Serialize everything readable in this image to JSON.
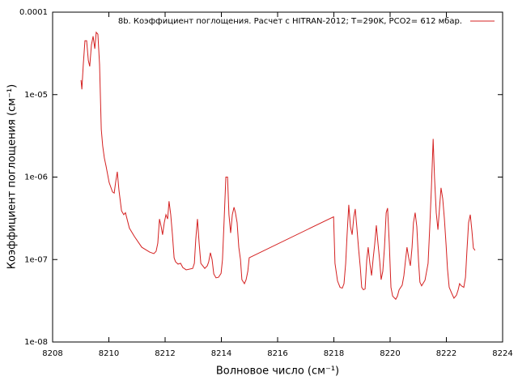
{
  "chart_data": {
    "type": "line",
    "xlabel": "Волновое число (см⁻¹)",
    "ylabel": "Коэффициент поглощения (см⁻¹)",
    "xlim": [
      8208,
      8224
    ],
    "xticks": [
      8208,
      8210,
      8212,
      8214,
      8216,
      8218,
      8220,
      8222,
      8224
    ],
    "ylim": [
      1e-08,
      0.0001
    ],
    "ylog": true,
    "yticks": [
      {
        "value": 1e-08,
        "label": "1e-08"
      },
      {
        "value": 1e-07,
        "label": "1e-07"
      },
      {
        "value": 1e-06,
        "label": "1e-06"
      },
      {
        "value": 1e-05,
        "label": "1e-05"
      },
      0.0001
    ],
    "legend": "upper-right",
    "x": [
      8209.01,
      8209.04,
      8209.09,
      8209.15,
      8209.21,
      8209.27,
      8209.32,
      8209.38,
      8209.44,
      8209.5,
      8209.55,
      8209.61,
      8209.67,
      8209.73,
      8209.78,
      8209.84,
      8209.9,
      8210.01,
      8210.13,
      8210.19,
      8210.24,
      8210.3,
      8210.36,
      8210.45,
      8210.53,
      8210.59,
      8210.73,
      8210.91,
      8211.17,
      8211.45,
      8211.6,
      8211.68,
      8211.74,
      8211.8,
      8211.86,
      8211.91,
      8211.97,
      8212.03,
      8212.09,
      8212.14,
      8212.2,
      8212.26,
      8212.32,
      8212.37,
      8212.46,
      8212.55,
      8212.63,
      8212.75,
      8212.98,
      8213.04,
      8213.09,
      8213.15,
      8213.21,
      8213.27,
      8213.41,
      8213.5,
      8213.55,
      8213.61,
      8213.67,
      8213.73,
      8213.81,
      8213.9,
      8213.99,
      8214.04,
      8214.1,
      8214.16,
      8214.22,
      8214.27,
      8214.33,
      8214.39,
      8214.45,
      8214.5,
      8214.56,
      8214.62,
      8214.68,
      8214.73,
      8214.82,
      8214.88,
      8214.94,
      8214.99,
      8217.99,
      8218.04,
      8218.13,
      8218.22,
      8218.3,
      8218.36,
      8218.42,
      8218.47,
      8218.53,
      8218.59,
      8218.65,
      8218.71,
      8218.76,
      8218.82,
      8218.88,
      8218.94,
      8218.99,
      8219.05,
      8219.11,
      8219.17,
      8219.22,
      8219.28,
      8219.34,
      8219.4,
      8219.45,
      8219.51,
      8219.57,
      8219.63,
      8219.68,
      8219.74,
      8219.8,
      8219.86,
      8219.91,
      8219.97,
      8220.03,
      8220.09,
      8220.2,
      8220.26,
      8220.32,
      8220.43,
      8220.49,
      8220.55,
      8220.6,
      8220.66,
      8220.72,
      8220.78,
      8220.83,
      8220.89,
      8220.95,
      8221.01,
      8221.06,
      8221.12,
      8221.24,
      8221.35,
      8221.41,
      8221.47,
      8221.53,
      8221.58,
      8221.64,
      8221.7,
      8221.76,
      8221.81,
      8221.87,
      8221.93,
      8221.99,
      8222.04,
      8222.1,
      8222.19,
      8222.27,
      8222.36,
      8222.42,
      8222.47,
      8222.53,
      8222.62,
      8222.68,
      8222.73,
      8222.79,
      8222.85,
      8222.91,
      8222.96,
      8223.02
    ],
    "series": [
      {
        "name": "8b. Коэффициент поглощения. Расчет с HITRAN-2012; T=290K, PCO2= 612 мбар.",
        "color": "#d42020",
        "values": [
          1.5e-05,
          1.16e-05,
          2.3e-05,
          4.5e-05,
          4.5e-05,
          2.6e-05,
          2.2e-05,
          4e-05,
          5.1e-05,
          3.6e-05,
          5.7e-05,
          5.4e-05,
          2.3e-05,
          3.8e-06,
          2.4e-06,
          1.7e-06,
          1.36e-06,
          8.6e-07,
          6.6e-07,
          6.4e-07,
          8.6e-07,
          1.16e-06,
          6.9e-07,
          3.9e-07,
          3.5e-07,
          3.7e-07,
          2.4e-07,
          1.9e-07,
          1.41e-07,
          1.23e-07,
          1.18e-07,
          1.26e-07,
          1.58e-07,
          3.1e-07,
          2.5e-07,
          2e-07,
          2.8e-07,
          3.5e-07,
          3.1e-07,
          5.1e-07,
          3.5e-07,
          2e-07,
          1.05e-07,
          9.4e-08,
          8.8e-08,
          9e-08,
          8e-08,
          7.5e-08,
          7.8e-08,
          9e-08,
          1.76e-07,
          3.1e-07,
          1.58e-07,
          9e-08,
          7.8e-08,
          8.4e-08,
          9.4e-08,
          1.21e-07,
          1e-07,
          6.7e-08,
          6e-08,
          6.1e-08,
          6.8e-08,
          1e-07,
          3.1e-07,
          1e-06,
          1e-06,
          3.5e-07,
          2.1e-07,
          3.5e-07,
          4.3e-07,
          3.7e-07,
          2.8e-07,
          1.41e-07,
          1e-07,
          5.7e-08,
          5.1e-08,
          5.7e-08,
          7.2e-08,
          1.05e-07,
          3.3e-07,
          9e-08,
          5.5e-08,
          4.6e-08,
          4.5e-08,
          5.1e-08,
          9e-08,
          2e-07,
          4.6e-07,
          2.5e-07,
          2e-07,
          3.3e-07,
          4.1e-07,
          2.4e-07,
          1.34e-07,
          8e-08,
          4.6e-08,
          4.3e-08,
          4.4e-08,
          1e-07,
          1.41e-07,
          9e-08,
          6.4e-08,
          1.05e-07,
          1.51e-07,
          2.6e-07,
          1.55e-07,
          9.6e-08,
          5.7e-08,
          7.2e-08,
          1.41e-07,
          3.7e-07,
          4.2e-07,
          1.58e-07,
          4.6e-08,
          3.6e-08,
          3.3e-08,
          3.6e-08,
          4.3e-08,
          4.9e-08,
          6.4e-08,
          1e-07,
          1.41e-07,
          1.05e-07,
          8.4e-08,
          1.41e-07,
          2.8e-07,
          3.7e-07,
          2.5e-07,
          9.6e-08,
          5.3e-08,
          4.8e-08,
          5.6e-08,
          9e-08,
          2.5e-07,
          7.7e-07,
          2.9e-06,
          9.7e-07,
          3.7e-07,
          2.3e-07,
          4.4e-07,
          7.4e-07,
          5.5e-07,
          3.1e-07,
          1.51e-07,
          7.7e-08,
          4.6e-08,
          3.9e-08,
          3.4e-08,
          3.7e-08,
          4.3e-08,
          5.1e-08,
          4.8e-08,
          4.6e-08,
          6.1e-08,
          1.26e-07,
          2.8e-07,
          3.5e-07,
          2.2e-07,
          1.38e-07,
          1.29e-07
        ]
      }
    ]
  }
}
